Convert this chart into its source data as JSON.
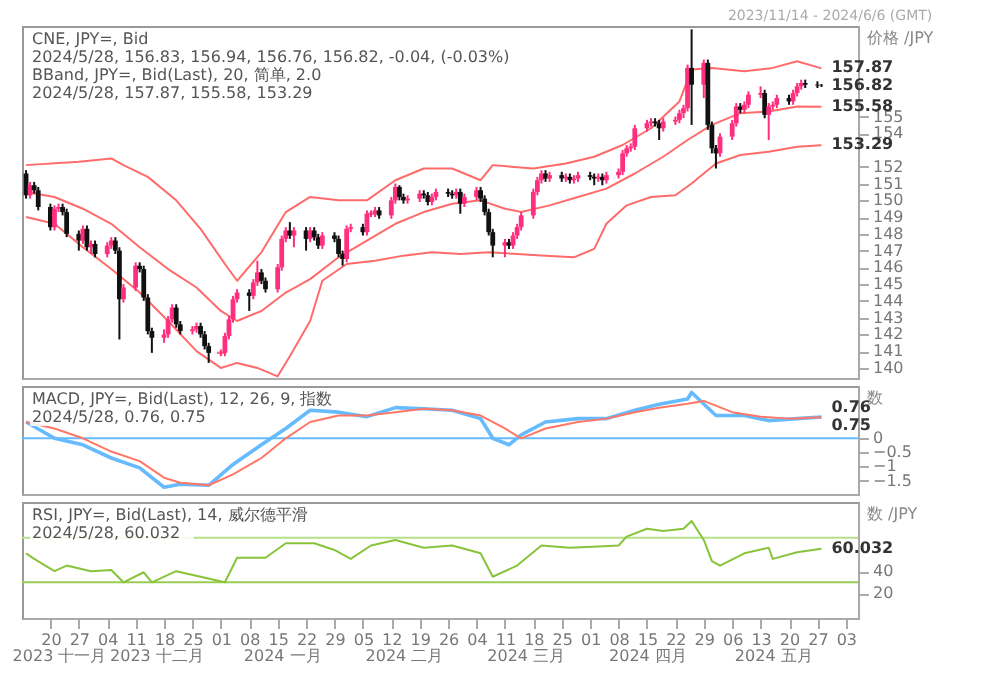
{
  "chart_data": [
    {
      "type": "candlestick",
      "colors": [
        "#111111",
        "#ff2f7f",
        "#111111",
        "#111111",
        "#111111",
        "#ff2f7f",
        "#ff2f7f",
        "#111111",
        "#111111",
        "#111111",
        "#ff2f7f",
        "#111111",
        "#ff2f7f",
        "#111111",
        "#ff2f7f",
        "#ff2f7f",
        "#111111",
        "#111111",
        "#ff2f7f",
        "#ff2f7f",
        "#111111",
        "#111111",
        "#111111",
        "#111111",
        "#ff2f7f",
        "#ff2f7f",
        "#ff2f7f",
        "#111111",
        "#111111",
        "#ff2f7f",
        "#ff2f7f",
        "#111111",
        "#111111",
        "#111111",
        "#ff2f7f",
        "#ff2f7f",
        "#ff2f7f",
        "#ff2f7f",
        "#ff2f7f",
        "#111111",
        "#ff2f7f",
        "#ff2f7f",
        "#111111",
        "#111111",
        "#ff2f7f",
        "#ff2f7f",
        "#ff2f7f",
        "#111111",
        "#ff2f7f",
        "#111111",
        "#ff2f7f",
        "#111111",
        "#111111",
        "#ff2f7f",
        "#111111",
        "#111111",
        "#111111",
        "#ff2f7f",
        "#ff2f7f",
        "#111111",
        "#ff2f7f",
        "#ff2f7f",
        "#ff2f7f",
        "#111111",
        "#ff2f7f",
        "#ff2f7f",
        "#111111",
        "#111111",
        "#ff2f7f",
        "#ff2f7f",
        "#111111",
        "#111111",
        "#ff2f7f",
        "#ff2f7f",
        "#111111",
        "#111111",
        "#ff2f7f",
        "#111111",
        "#ff2f7f",
        "#ff2f7f",
        "#111111",
        "#111111",
        "#111111",
        "#111111",
        "#ff2f7f",
        "#111111",
        "#ff2f7f",
        "#ff2f7f",
        "#ff2f7f",
        "#ff2f7f",
        "#ff2f7f",
        "#ff2f7f",
        "#111111",
        "#ff2f7f",
        "#111111",
        "#ff2f7f",
        "#111111",
        "#ff2f7f",
        "#ff2f7f",
        "#111111",
        "#111111",
        "#ff2f7f",
        "#111111",
        "#ff2f7f",
        "#ff2f7f",
        "#ff2f7f",
        "#ff2f7f",
        "#ff2f7f",
        "#ff2f7f",
        "#ff2f7f",
        "#ff2f7f",
        "#111111",
        "#111111",
        "#ff2f7f",
        "#ff2f7f",
        "#ff2f7f",
        "#ff2f7f",
        "#ff2f7f",
        "#111111",
        "#ff2f7f",
        "#111111",
        "#111111",
        "#111111",
        "#ff2f7f",
        "#ff2f7f",
        "#ff2f7f",
        "#111111",
        "#ff2f7f",
        "#ff2f7f",
        "#ff2f7f",
        "#111111",
        "#ff2f7f",
        "#ff2f7f",
        "#ff2f7f",
        "#111111",
        "#ff2f7f",
        "#ff2f7f",
        "#ff2f7f",
        "#111111",
        "#111111",
        "#111111"
      ],
      "ylabel": "价格 /JPY",
      "tick_labels": "y",
      "subtitle": "2023/11/14 - 2024/6/6 (GMT)",
      "annotations": [
        "CNE, JPY=, Bid",
        "2024/5/28, 156.83, 156.94, 156.76, 156.82, -0.04, (-0.03%)",
        "BBand, JPY=, Bid(Last), 20, 简单, 2.0",
        "2024/5/28, 157.87, 155.58, 153.29",
        {
          "text": "157.87",
          "x": "2024-05-28",
          "y": 157.87
        },
        {
          "text": "156.82",
          "x": "2024-05-28",
          "y": 156.82
        },
        {
          "text": "155.58",
          "x": "2024-05-28",
          "y": 155.58
        },
        {
          "text": "153.29",
          "x": "2024-05-28",
          "y": 153.29
        }
      ],
      "xlim": [
        "2023-11-13",
        "2024-06-06"
      ],
      "ylim": [
        139.4,
        160.4
      ],
      "yticks": [
        140,
        141,
        142,
        143,
        144,
        145,
        146,
        147,
        148,
        149,
        150,
        151,
        152,
        154,
        155
      ],
      "x": [
        "2023-11-14",
        "2023-11-15",
        "2023-11-16",
        "2023-11-17",
        "2023-11-20",
        "2023-11-21",
        "2023-11-22",
        "2023-11-23",
        "2023-11-24",
        "2023-11-27",
        "2023-11-28",
        "2023-11-29",
        "2023-11-30",
        "2023-12-01",
        "2023-12-04",
        "2023-12-05",
        "2023-12-06",
        "2023-12-07",
        "2023-12-08",
        "2023-12-11",
        "2023-12-12",
        "2023-12-13",
        "2023-12-14",
        "2023-12-15",
        "2023-12-18",
        "2023-12-19",
        "2023-12-20",
        "2023-12-21",
        "2023-12-22",
        "2023-12-25",
        "2023-12-26",
        "2023-12-27",
        "2023-12-28",
        "2023-12-29",
        "2024-01-01",
        "2024-01-02",
        "2024-01-03",
        "2024-01-04",
        "2024-01-05",
        "2024-01-08",
        "2024-01-09",
        "2024-01-10",
        "2024-01-11",
        "2024-01-12",
        "2024-01-15",
        "2024-01-16",
        "2024-01-17",
        "2024-01-18",
        "2024-01-19",
        "2024-01-22",
        "2024-01-23",
        "2024-01-24",
        "2024-01-25",
        "2024-01-26",
        "2024-01-29",
        "2024-01-30",
        "2024-01-31",
        "2024-02-01",
        "2024-02-02",
        "2024-02-05",
        "2024-02-06",
        "2024-02-07",
        "2024-02-08",
        "2024-02-09",
        "2024-02-12",
        "2024-02-13",
        "2024-02-14",
        "2024-02-15",
        "2024-02-16",
        "2024-02-19",
        "2024-02-20",
        "2024-02-21",
        "2024-02-22",
        "2024-02-23",
        "2024-02-26",
        "2024-02-27",
        "2024-02-28",
        "2024-02-29",
        "2024-03-01",
        "2024-03-04",
        "2024-03-05",
        "2024-03-06",
        "2024-03-07",
        "2024-03-08",
        "2024-03-11",
        "2024-03-12",
        "2024-03-13",
        "2024-03-14",
        "2024-03-15",
        "2024-03-18",
        "2024-03-19",
        "2024-03-20",
        "2024-03-21",
        "2024-03-22",
        "2024-03-25",
        "2024-03-26",
        "2024-03-27",
        "2024-03-28",
        "2024-03-29",
        "2024-04-01",
        "2024-04-02",
        "2024-04-03",
        "2024-04-04",
        "2024-04-05",
        "2024-04-08",
        "2024-04-09",
        "2024-04-10",
        "2024-04-11",
        "2024-04-12",
        "2024-04-15",
        "2024-04-16",
        "2024-04-17",
        "2024-04-18",
        "2024-04-19",
        "2024-04-22",
        "2024-04-23",
        "2024-04-24",
        "2024-04-25",
        "2024-04-26",
        "2024-04-29",
        "2024-04-30",
        "2024-05-01",
        "2024-05-02",
        "2024-05-03",
        "2024-05-06",
        "2024-05-07",
        "2024-05-08",
        "2024-05-09",
        "2024-05-10",
        "2024-05-13",
        "2024-05-14",
        "2024-05-15",
        "2024-05-16",
        "2024-05-17",
        "2024-05-20",
        "2024-05-21",
        "2024-05-22",
        "2024-05-23",
        "2024-05-24",
        "2024-05-27",
        "2024-05-28"
      ],
      "ohlc": [
        [
          151.6,
          151.8,
          150.1,
          150.3
        ],
        [
          150.3,
          151.1,
          150.1,
          150.9
        ],
        [
          150.9,
          151.1,
          150.4,
          150.6
        ],
        [
          150.6,
          150.8,
          149.4,
          149.6
        ],
        [
          149.6,
          149.8,
          148.2,
          148.4
        ],
        [
          148.4,
          149.7,
          148.2,
          149.5
        ],
        [
          149.5,
          149.8,
          149.3,
          149.6
        ],
        [
          149.6,
          149.8,
          149.1,
          149.3
        ],
        [
          149.3,
          149.5,
          147.8,
          148.0
        ],
        [
          148.0,
          148.2,
          147.0,
          147.6
        ],
        [
          147.6,
          148.5,
          147.4,
          148.3
        ],
        [
          148.3,
          148.5,
          147.0,
          147.2
        ],
        [
          147.2,
          147.6,
          146.8,
          147.4
        ],
        [
          147.4,
          147.6,
          146.6,
          146.8
        ],
        [
          146.8,
          147.5,
          146.6,
          147.3
        ],
        [
          147.3,
          147.8,
          147.1,
          147.6
        ],
        [
          147.6,
          147.8,
          146.8,
          147.0
        ],
        [
          147.0,
          147.2,
          141.7,
          144.1
        ],
        [
          144.1,
          145.0,
          143.9,
          144.8
        ],
        [
          144.8,
          146.3,
          144.6,
          146.1
        ],
        [
          146.1,
          146.3,
          145.7,
          145.9
        ],
        [
          145.9,
          146.1,
          144.0,
          144.2
        ],
        [
          144.2,
          144.4,
          142.0,
          142.2
        ],
        [
          142.2,
          142.4,
          140.9,
          141.8
        ],
        [
          141.8,
          142.3,
          141.5,
          142.0
        ],
        [
          142.0,
          143.1,
          141.8,
          142.9
        ],
        [
          142.9,
          143.8,
          142.7,
          143.6
        ],
        [
          143.6,
          143.8,
          142.4,
          142.6
        ],
        [
          142.6,
          142.8,
          142.0,
          142.2
        ],
        [
          142.2,
          142.5,
          142.0,
          142.3
        ],
        [
          142.3,
          142.7,
          142.1,
          142.5
        ],
        [
          142.5,
          142.7,
          141.8,
          142.0
        ],
        [
          142.0,
          142.2,
          141.1,
          141.3
        ],
        [
          141.3,
          141.5,
          140.3,
          140.9
        ],
        [
          140.9,
          141.1,
          140.7,
          140.9
        ],
        [
          140.9,
          142.1,
          140.7,
          141.9
        ],
        [
          141.9,
          143.1,
          141.7,
          142.9
        ],
        [
          142.9,
          144.3,
          142.7,
          144.1
        ],
        [
          144.1,
          144.7,
          143.9,
          144.5
        ],
        [
          144.5,
          144.7,
          143.4,
          144.3
        ],
        [
          144.3,
          145.3,
          144.1,
          145.1
        ],
        [
          145.1,
          146.4,
          144.9,
          145.7
        ],
        [
          145.7,
          145.9,
          145.0,
          145.2
        ],
        [
          145.2,
          145.4,
          144.5,
          144.7
        ],
        [
          144.7,
          146.2,
          144.5,
          146.0
        ],
        [
          146.0,
          147.9,
          145.8,
          147.7
        ],
        [
          147.7,
          148.4,
          147.5,
          148.2
        ],
        [
          148.2,
          148.7,
          147.7,
          147.9
        ],
        [
          147.9,
          148.4,
          147.2,
          148.2
        ],
        [
          148.2,
          148.4,
          147.0,
          147.7
        ],
        [
          147.7,
          148.4,
          147.5,
          148.2
        ],
        [
          148.2,
          148.4,
          147.6,
          147.8
        ],
        [
          147.8,
          148.0,
          147.1,
          147.3
        ],
        [
          147.3,
          148.1,
          147.1,
          147.9
        ],
        [
          147.9,
          148.1,
          147.5,
          147.7
        ],
        [
          147.7,
          147.9,
          146.6,
          146.8
        ],
        [
          146.8,
          147.0,
          146.1,
          146.5
        ],
        [
          146.5,
          148.5,
          146.3,
          148.3
        ],
        [
          148.3,
          148.6,
          148.1,
          148.4
        ],
        [
          148.4,
          148.6,
          147.9,
          148.1
        ],
        [
          148.1,
          149.4,
          147.9,
          149.2
        ],
        [
          149.2,
          149.4,
          149.0,
          149.2
        ],
        [
          149.2,
          149.6,
          149.0,
          149.4
        ],
        [
          149.4,
          149.6,
          148.9,
          149.1
        ],
        [
          149.1,
          150.2,
          148.9,
          150.0
        ],
        [
          150.0,
          151.0,
          149.8,
          150.8
        ],
        [
          150.8,
          150.9,
          150.0,
          150.2
        ],
        [
          150.2,
          150.4,
          149.8,
          150.0
        ],
        [
          150.0,
          150.3,
          149.8,
          150.1
        ],
        [
          150.1,
          150.6,
          149.9,
          150.4
        ],
        [
          150.4,
          150.6,
          150.1,
          150.3
        ],
        [
          150.3,
          150.5,
          149.7,
          149.9
        ],
        [
          149.9,
          150.4,
          149.7,
          150.2
        ],
        [
          150.2,
          150.7,
          150.0,
          150.5
        ],
        [
          150.5,
          150.7,
          150.2,
          150.4
        ],
        [
          150.4,
          150.6,
          150.1,
          150.3
        ],
        [
          150.3,
          150.7,
          150.1,
          150.5
        ],
        [
          150.5,
          150.7,
          149.2,
          149.8
        ],
        [
          149.8,
          150.4,
          149.6,
          150.2
        ],
        [
          150.2,
          150.8,
          150.0,
          150.6
        ],
        [
          150.6,
          150.8,
          149.9,
          150.1
        ],
        [
          150.1,
          150.3,
          149.1,
          149.3
        ],
        [
          149.3,
          149.5,
          147.9,
          148.1
        ],
        [
          148.1,
          148.3,
          146.6,
          147.3
        ],
        [
          147.3,
          147.7,
          146.6,
          147.5
        ],
        [
          147.5,
          147.7,
          147.1,
          147.3
        ],
        [
          147.3,
          148.1,
          147.1,
          147.9
        ],
        [
          147.9,
          148.6,
          147.7,
          148.4
        ],
        [
          148.4,
          149.3,
          148.2,
          149.1
        ],
        [
          149.1,
          150.7,
          148.9,
          150.5
        ],
        [
          150.5,
          151.4,
          150.3,
          151.2
        ],
        [
          151.2,
          151.8,
          151.0,
          151.6
        ],
        [
          151.6,
          151.8,
          151.1,
          151.3
        ],
        [
          151.3,
          151.7,
          151.1,
          151.5
        ],
        [
          151.5,
          151.7,
          151.1,
          151.3
        ],
        [
          151.3,
          151.6,
          151.1,
          151.4
        ],
        [
          151.4,
          151.6,
          151.0,
          151.2
        ],
        [
          151.2,
          151.5,
          151.0,
          151.3
        ],
        [
          151.3,
          151.7,
          151.1,
          151.5
        ],
        [
          151.5,
          151.7,
          151.2,
          151.4
        ],
        [
          151.4,
          151.6,
          150.9,
          151.3
        ],
        [
          151.3,
          151.6,
          151.1,
          151.4
        ],
        [
          151.4,
          151.6,
          150.9,
          151.2
        ],
        [
          151.2,
          151.7,
          151.0,
          151.5
        ],
        [
          151.5,
          151.9,
          151.3,
          151.7
        ],
        [
          151.7,
          153.0,
          151.5,
          152.8
        ],
        [
          152.8,
          153.3,
          152.6,
          153.1
        ],
        [
          153.1,
          153.4,
          152.9,
          153.2
        ],
        [
          153.2,
          154.5,
          153.0,
          154.3
        ],
        [
          154.3,
          154.8,
          154.1,
          154.6
        ],
        [
          154.6,
          154.9,
          154.4,
          154.7
        ],
        [
          154.7,
          154.9,
          154.4,
          154.6
        ],
        [
          154.6,
          154.8,
          153.6,
          154.3
        ],
        [
          154.3,
          154.9,
          154.1,
          154.7
        ],
        [
          154.7,
          155.0,
          154.5,
          154.8
        ],
        [
          154.8,
          155.4,
          154.6,
          155.2
        ],
        [
          155.2,
          155.7,
          154.9,
          155.5
        ],
        [
          155.5,
          158.1,
          155.3,
          157.9
        ],
        [
          157.9,
          160.2,
          154.5,
          156.9
        ],
        [
          156.9,
          158.4,
          156.1,
          158.2
        ],
        [
          158.2,
          158.4,
          154.2,
          154.5
        ],
        [
          154.5,
          154.7,
          152.8,
          153.1
        ],
        [
          153.1,
          153.3,
          151.9,
          152.8
        ],
        [
          152.8,
          154.0,
          152.6,
          153.8
        ],
        [
          153.8,
          154.8,
          153.6,
          154.6
        ],
        [
          154.6,
          155.8,
          154.4,
          155.6
        ],
        [
          155.6,
          155.8,
          155.2,
          155.4
        ],
        [
          155.4,
          155.9,
          155.2,
          155.7
        ],
        [
          155.7,
          156.5,
          155.5,
          156.3
        ],
        [
          156.3,
          156.8,
          156.1,
          156.4
        ],
        [
          156.4,
          156.6,
          154.9,
          155.1
        ],
        [
          155.1,
          155.8,
          153.6,
          155.6
        ],
        [
          155.6,
          155.9,
          155.4,
          155.7
        ],
        [
          155.7,
          156.3,
          155.5,
          156.1
        ],
        [
          156.1,
          156.3,
          155.7,
          155.9
        ],
        [
          155.9,
          156.6,
          155.7,
          156.4
        ],
        [
          156.4,
          157.0,
          156.2,
          156.8
        ],
        [
          156.8,
          157.2,
          156.6,
          157.0
        ],
        [
          157.0,
          157.2,
          156.7,
          156.9
        ],
        [
          156.9,
          157.1,
          156.7,
          156.85
        ],
        [
          156.83,
          156.94,
          156.76,
          156.82
        ]
      ],
      "series": [
        {
          "type": "line",
          "color": "#ff6b6b",
          "x": [
            "2023-11-14",
            "2023-11-27",
            "2023-12-05",
            "2023-12-08",
            "2023-12-14",
            "2023-12-21",
            "2023-12-27",
            "2024-01-02",
            "2024-01-05",
            "2024-01-11",
            "2024-01-17",
            "2024-01-23",
            "2024-01-30",
            "2024-02-06",
            "2024-02-13",
            "2024-02-20",
            "2024-02-27",
            "2024-03-05",
            "2024-03-08",
            "2024-03-18",
            "2024-03-26",
            "2024-04-02",
            "2024-04-09",
            "2024-04-16",
            "2024-04-23",
            "2024-04-26",
            "2024-05-01",
            "2024-05-09",
            "2024-05-16",
            "2024-05-22",
            "2024-05-28"
          ],
          "values": [
            152.1,
            152.3,
            152.5,
            152.1,
            151.4,
            150.0,
            148.3,
            146.2,
            145.2,
            146.9,
            149.3,
            150.2,
            150.0,
            150.0,
            151.2,
            151.9,
            151.9,
            151.2,
            152.1,
            151.9,
            152.2,
            152.6,
            153.3,
            154.3,
            155.9,
            157.8,
            157.9,
            157.7,
            157.9,
            158.3,
            157.87
          ]
        },
        {
          "type": "line",
          "color": "#ff6b6b",
          "x": [
            "2023-11-14",
            "2023-11-21",
            "2023-11-28",
            "2023-12-05",
            "2023-12-12",
            "2023-12-19",
            "2023-12-26",
            "2024-01-01",
            "2024-01-05",
            "2024-01-11",
            "2024-01-17",
            "2024-01-23",
            "2024-01-30",
            "2024-02-06",
            "2024-02-13",
            "2024-02-20",
            "2024-02-27",
            "2024-03-05",
            "2024-03-11",
            "2024-03-15",
            "2024-03-22",
            "2024-03-29",
            "2024-04-05",
            "2024-04-12",
            "2024-04-19",
            "2024-04-25",
            "2024-05-01",
            "2024-05-08",
            "2024-05-15",
            "2024-05-22",
            "2024-05-28"
          ],
          "values": [
            150.5,
            150.2,
            149.5,
            148.6,
            147.2,
            145.9,
            144.8,
            143.4,
            142.8,
            143.4,
            144.5,
            145.3,
            146.6,
            147.6,
            148.6,
            149.3,
            149.8,
            150.0,
            149.5,
            149.3,
            149.7,
            150.2,
            150.7,
            151.6,
            152.6,
            153.6,
            154.5,
            155.2,
            155.3,
            155.6,
            155.58
          ]
        },
        {
          "type": "line",
          "color": "#ff6b6b",
          "x": [
            "2023-11-14",
            "2023-11-21",
            "2023-11-28",
            "2023-12-05",
            "2023-12-12",
            "2023-12-19",
            "2023-12-26",
            "2024-01-01",
            "2024-01-05",
            "2024-01-10",
            "2024-01-15",
            "2024-01-18",
            "2024-01-23",
            "2024-01-26",
            "2024-02-01",
            "2024-02-08",
            "2024-02-15",
            "2024-02-22",
            "2024-02-29",
            "2024-03-07",
            "2024-03-14",
            "2024-03-21",
            "2024-03-28",
            "2024-04-02",
            "2024-04-05",
            "2024-04-10",
            "2024-04-16",
            "2024-04-22",
            "2024-04-26",
            "2024-05-02",
            "2024-05-08",
            "2024-05-15",
            "2024-05-22",
            "2024-05-28"
          ],
          "values": [
            149.0,
            148.6,
            147.2,
            145.9,
            144.5,
            142.8,
            141.0,
            140.0,
            140.3,
            140.0,
            139.5,
            140.7,
            142.8,
            145.2,
            146.2,
            146.4,
            146.7,
            146.9,
            146.8,
            146.9,
            146.8,
            146.7,
            146.6,
            147.1,
            148.6,
            149.7,
            150.2,
            150.3,
            151.0,
            152.2,
            152.7,
            152.9,
            153.2,
            153.29
          ]
        }
      ]
    },
    {
      "type": "line",
      "ylabel": "数",
      "tick_labels": "y",
      "annotations": [
        "MACD, JPY=, Bid(Last), 12, 26, 9, 指数",
        "2024/5/28, 0.76, 0.75",
        {
          "text": "0.76",
          "x": "2024-05-28",
          "y": 0.76
        },
        {
          "text": "0.75",
          "x": "2024-05-28",
          "y": 0.75
        }
      ],
      "xlim": [
        "2023-11-13",
        "2024-06-06"
      ],
      "ylim": [
        -1.98,
        1.86
      ],
      "yticks": [
        {
          "value": 0,
          "label": "0"
        },
        {
          "value": -0.5,
          "label": "−0.5"
        },
        {
          "value": -1,
          "label": "−1"
        },
        {
          "value": -1.5,
          "label": "−1.5"
        }
      ],
      "ref_lines": [
        {
          "axis": "y",
          "value": 0,
          "color": "#66bbff"
        }
      ],
      "series": [
        {
          "color": "#66bbff",
          "x": [
            "2023-11-14",
            "2023-11-21",
            "2023-11-28",
            "2023-12-05",
            "2023-12-12",
            "2023-12-18",
            "2023-12-22",
            "2023-12-29",
            "2024-01-04",
            "2024-01-11",
            "2024-01-17",
            "2024-01-23",
            "2024-01-30",
            "2024-02-06",
            "2024-02-13",
            "2024-02-20",
            "2024-02-27",
            "2024-03-05",
            "2024-03-08",
            "2024-03-12",
            "2024-03-15",
            "2024-03-21",
            "2024-03-29",
            "2024-04-05",
            "2024-04-12",
            "2024-04-18",
            "2024-04-25",
            "2024-04-26",
            "2024-05-02",
            "2024-05-09",
            "2024-05-15",
            "2024-05-22",
            "2024-05-28"
          ],
          "values": [
            0.58,
            0.0,
            -0.23,
            -0.7,
            -1.05,
            -1.74,
            -1.63,
            -1.67,
            -0.93,
            -0.23,
            0.35,
            1.0,
            0.93,
            0.77,
            1.09,
            1.05,
            1.0,
            0.7,
            0.0,
            -0.23,
            0.12,
            0.58,
            0.7,
            0.7,
            1.0,
            1.21,
            1.4,
            1.63,
            0.81,
            0.81,
            0.63,
            0.7,
            0.76
          ]
        },
        {
          "color": "#ff7766",
          "x": [
            "2023-11-14",
            "2023-11-21",
            "2023-11-28",
            "2023-12-05",
            "2023-12-12",
            "2023-12-18",
            "2023-12-22",
            "2023-12-29",
            "2024-01-04",
            "2024-01-11",
            "2024-01-17",
            "2024-01-23",
            "2024-01-30",
            "2024-02-06",
            "2024-02-13",
            "2024-02-20",
            "2024-02-27",
            "2024-03-05",
            "2024-03-11",
            "2024-03-15",
            "2024-03-21",
            "2024-03-29",
            "2024-04-05",
            "2024-04-12",
            "2024-04-18",
            "2024-04-25",
            "2024-04-29",
            "2024-05-06",
            "2024-05-13",
            "2024-05-20",
            "2024-05-28"
          ],
          "values": [
            0.58,
            0.35,
            0.0,
            -0.47,
            -0.81,
            -1.4,
            -1.58,
            -1.67,
            -1.28,
            -0.7,
            0.0,
            0.58,
            0.81,
            0.81,
            0.93,
            1.05,
            1.0,
            0.81,
            0.35,
            0.0,
            0.35,
            0.58,
            0.7,
            0.93,
            1.09,
            1.23,
            1.33,
            0.93,
            0.77,
            0.7,
            0.75
          ]
        }
      ]
    },
    {
      "type": "line",
      "ylabel": "数 /JPY",
      "annotations": [
        "RSI, JPY=, Bid(Last), 14, 威尔德平滑",
        "2024/5/28, 60.032",
        {
          "text": "60.032",
          "x": "2024-05-28",
          "y": 60.032
        }
      ],
      "xlim": [
        "2023-11-13",
        "2024-06-06"
      ],
      "ylim": [
        -2,
        102
      ],
      "yticks": [
        20,
        40
      ],
      "xticks": [
        {
          "value": "2023-11-20",
          "label": "20"
        },
        {
          "value": "2023-11-27",
          "label": "27"
        },
        {
          "value": "2023-12-04",
          "label": "04"
        },
        {
          "value": "2023-12-11",
          "label": "11"
        },
        {
          "value": "2023-12-18",
          "label": "18"
        },
        {
          "value": "2023-12-25",
          "label": "25"
        },
        {
          "value": "2024-01-01",
          "label": "01"
        },
        {
          "value": "2024-01-08",
          "label": "08"
        },
        {
          "value": "2024-01-15",
          "label": "15"
        },
        {
          "value": "2024-01-22",
          "label": "22"
        },
        {
          "value": "2024-01-29",
          "label": "29"
        },
        {
          "value": "2024-02-05",
          "label": "05"
        },
        {
          "value": "2024-02-12",
          "label": "12"
        },
        {
          "value": "2024-02-19",
          "label": "19"
        },
        {
          "value": "2024-02-26",
          "label": "26"
        },
        {
          "value": "2024-03-04",
          "label": "04"
        },
        {
          "value": "2024-03-11",
          "label": "11"
        },
        {
          "value": "2024-03-18",
          "label": "18"
        },
        {
          "value": "2024-03-25",
          "label": "25"
        },
        {
          "value": "2024-04-01",
          "label": "01"
        },
        {
          "value": "2024-04-08",
          "label": "08"
        },
        {
          "value": "2024-04-15",
          "label": "15"
        },
        {
          "value": "2024-04-22",
          "label": "22"
        },
        {
          "value": "2024-04-29",
          "label": "29"
        },
        {
          "value": "2024-05-06",
          "label": "06"
        },
        {
          "value": "2024-05-13",
          "label": "13"
        },
        {
          "value": "2024-05-20",
          "label": "20"
        },
        {
          "value": "2024-05-27",
          "label": "27"
        },
        {
          "value": "2024-06-03",
          "label": "03"
        }
      ],
      "x2lim": [
        "2023-11-13",
        "2024-06-06"
      ],
      "x2ticks": [
        {
          "value": "2023-11-22",
          "label": "2023 十一月"
        },
        {
          "value": "2023-12-16",
          "label": "2023 十二月"
        },
        {
          "value": "2024-01-16",
          "label": "2024 一月"
        },
        {
          "value": "2024-02-15",
          "label": "2024 二月"
        },
        {
          "value": "2024-03-16",
          "label": "2024 三月"
        },
        {
          "value": "2024-04-15",
          "label": "2024 四月"
        },
        {
          "value": "2024-05-16",
          "label": "2024 五月"
        }
      ],
      "ref_lines": [
        {
          "axis": "y",
          "value": 70,
          "color": "#b5e08a"
        },
        {
          "axis": "y",
          "value": 30,
          "color": "#99cc55"
        }
      ],
      "series": [
        {
          "color": "#88c43a",
          "x": [
            "2023-11-14",
            "2023-11-16",
            "2023-11-21",
            "2023-11-24",
            "2023-11-30",
            "2023-12-05",
            "2023-12-08",
            "2023-12-13",
            "2023-12-15",
            "2023-12-21",
            "2023-12-27",
            "2024-01-02",
            "2024-01-05",
            "2024-01-12",
            "2024-01-17",
            "2024-01-24",
            "2024-01-29",
            "2024-02-02",
            "2024-02-07",
            "2024-02-13",
            "2024-02-20",
            "2024-02-27",
            "2024-03-05",
            "2024-03-08",
            "2024-03-14",
            "2024-03-20",
            "2024-03-27",
            "2024-04-03",
            "2024-04-08",
            "2024-04-10",
            "2024-04-15",
            "2024-04-19",
            "2024-04-24",
            "2024-04-26",
            "2024-04-29",
            "2024-05-01",
            "2024-05-03",
            "2024-05-09",
            "2024-05-15",
            "2024-05-16",
            "2024-05-22",
            "2024-05-28"
          ],
          "values": [
            56,
            51,
            40,
            45,
            40,
            41,
            30,
            39,
            30,
            40,
            35,
            30,
            52,
            52,
            65,
            65,
            59,
            51,
            63,
            68,
            61,
            63,
            56,
            35,
            45,
            63,
            61,
            62,
            63,
            71,
            78,
            76,
            78,
            85,
            68,
            49,
            45,
            56,
            61,
            51,
            57,
            60.032
          ]
        }
      ]
    }
  ]
}
